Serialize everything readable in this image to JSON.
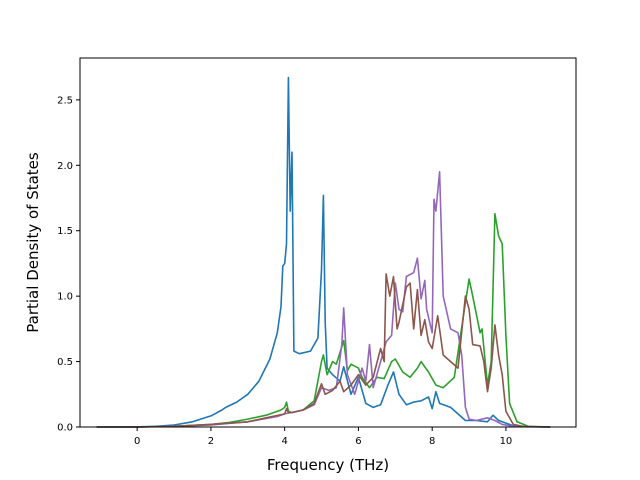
{
  "chart_data": {
    "type": "line",
    "title": "",
    "xlabel": "Frequency (THz)",
    "ylabel": "Partial Density of States",
    "xlim": [
      -1.55,
      11.9
    ],
    "ylim": [
      0,
      2.82
    ],
    "xticks": [
      0,
      2,
      4,
      6,
      8,
      10
    ],
    "yticks": [
      0.0,
      0.5,
      1.0,
      1.5,
      2.0,
      2.5
    ],
    "grid": false,
    "legend": "none",
    "series": [
      {
        "color": "#1f77b4",
        "points": [
          [
            -1.1,
            0
          ],
          [
            0,
            0.001
          ],
          [
            0.5,
            0.005
          ],
          [
            1.0,
            0.015
          ],
          [
            1.5,
            0.04
          ],
          [
            2.0,
            0.085
          ],
          [
            2.3,
            0.13
          ],
          [
            2.4,
            0.15
          ],
          [
            2.7,
            0.19
          ],
          [
            3.0,
            0.25
          ],
          [
            3.3,
            0.35
          ],
          [
            3.6,
            0.52
          ],
          [
            3.8,
            0.72
          ],
          [
            3.9,
            0.92
          ],
          [
            3.95,
            1.23
          ],
          [
            4.0,
            1.25
          ],
          [
            4.05,
            1.4
          ],
          [
            4.1,
            2.67
          ],
          [
            4.15,
            1.65
          ],
          [
            4.2,
            2.1
          ],
          [
            4.25,
            0.58
          ],
          [
            4.4,
            0.56
          ],
          [
            4.7,
            0.58
          ],
          [
            4.9,
            0.68
          ],
          [
            5.0,
            1.2
          ],
          [
            5.05,
            1.77
          ],
          [
            5.1,
            0.8
          ],
          [
            5.15,
            0.45
          ],
          [
            5.3,
            0.4
          ],
          [
            5.5,
            0.35
          ],
          [
            5.6,
            0.46
          ],
          [
            5.8,
            0.25
          ],
          [
            6.0,
            0.38
          ],
          [
            6.2,
            0.18
          ],
          [
            6.4,
            0.15
          ],
          [
            6.6,
            0.17
          ],
          [
            6.8,
            0.32
          ],
          [
            6.95,
            0.42
          ],
          [
            7.1,
            0.25
          ],
          [
            7.3,
            0.17
          ],
          [
            7.5,
            0.19
          ],
          [
            7.7,
            0.2
          ],
          [
            7.9,
            0.23
          ],
          [
            8.0,
            0.14
          ],
          [
            8.1,
            0.27
          ],
          [
            8.2,
            0.18
          ],
          [
            8.5,
            0.15
          ],
          [
            8.7,
            0.1
          ],
          [
            8.9,
            0.05
          ],
          [
            9.2,
            0.05
          ],
          [
            9.5,
            0.04
          ],
          [
            9.65,
            0.09
          ],
          [
            9.8,
            0.05
          ],
          [
            10.0,
            0.03
          ],
          [
            10.2,
            0.01
          ],
          [
            10.5,
            0.002
          ],
          [
            11.2,
            0
          ]
        ]
      },
      {
        "color": "#2ca02c",
        "points": [
          [
            -1.1,
            0
          ],
          [
            0,
            0
          ],
          [
            1.0,
            0.005
          ],
          [
            2.0,
            0.02
          ],
          [
            2.5,
            0.035
          ],
          [
            3.0,
            0.06
          ],
          [
            3.5,
            0.09
          ],
          [
            3.9,
            0.13
          ],
          [
            4.0,
            0.15
          ],
          [
            4.05,
            0.19
          ],
          [
            4.1,
            0.12
          ],
          [
            4.2,
            0.11
          ],
          [
            4.5,
            0.13
          ],
          [
            4.8,
            0.2
          ],
          [
            5.0,
            0.5
          ],
          [
            5.05,
            0.55
          ],
          [
            5.15,
            0.4
          ],
          [
            5.3,
            0.5
          ],
          [
            5.4,
            0.48
          ],
          [
            5.6,
            0.66
          ],
          [
            5.7,
            0.43
          ],
          [
            5.8,
            0.48
          ],
          [
            6.0,
            0.45
          ],
          [
            6.1,
            0.38
          ],
          [
            6.3,
            0.3
          ],
          [
            6.5,
            0.38
          ],
          [
            6.7,
            0.37
          ],
          [
            6.9,
            0.5
          ],
          [
            7.0,
            0.52
          ],
          [
            7.2,
            0.42
          ],
          [
            7.4,
            0.38
          ],
          [
            7.6,
            0.45
          ],
          [
            7.7,
            0.5
          ],
          [
            7.9,
            0.42
          ],
          [
            8.1,
            0.32
          ],
          [
            8.3,
            0.3
          ],
          [
            8.6,
            0.38
          ],
          [
            8.9,
            0.95
          ],
          [
            9.0,
            1.13
          ],
          [
            9.1,
            1.0
          ],
          [
            9.3,
            0.72
          ],
          [
            9.35,
            0.75
          ],
          [
            9.5,
            0.32
          ],
          [
            9.6,
            0.5
          ],
          [
            9.7,
            1.63
          ],
          [
            9.8,
            1.46
          ],
          [
            9.9,
            1.4
          ],
          [
            10.0,
            0.7
          ],
          [
            10.1,
            0.18
          ],
          [
            10.3,
            0.04
          ],
          [
            10.6,
            0.005
          ],
          [
            11.2,
            0
          ]
        ]
      },
      {
        "color": "#9467bd",
        "points": [
          [
            -1.1,
            0
          ],
          [
            0,
            0
          ],
          [
            1.0,
            0.005
          ],
          [
            2.0,
            0.015
          ],
          [
            3.0,
            0.04
          ],
          [
            3.8,
            0.08
          ],
          [
            4.0,
            0.1
          ],
          [
            4.5,
            0.13
          ],
          [
            4.8,
            0.17
          ],
          [
            5.0,
            0.3
          ],
          [
            5.2,
            0.28
          ],
          [
            5.4,
            0.3
          ],
          [
            5.55,
            0.63
          ],
          [
            5.6,
            0.91
          ],
          [
            5.7,
            0.4
          ],
          [
            5.9,
            0.25
          ],
          [
            6.1,
            0.45
          ],
          [
            6.2,
            0.35
          ],
          [
            6.3,
            0.63
          ],
          [
            6.4,
            0.3
          ],
          [
            6.5,
            0.4
          ],
          [
            6.6,
            0.5
          ],
          [
            6.75,
            0.65
          ],
          [
            6.9,
            0.7
          ],
          [
            7.0,
            1.1
          ],
          [
            7.1,
            0.9
          ],
          [
            7.2,
            0.88
          ],
          [
            7.3,
            1.15
          ],
          [
            7.5,
            1.18
          ],
          [
            7.6,
            1.29
          ],
          [
            7.7,
            0.98
          ],
          [
            7.8,
            1.12
          ],
          [
            7.85,
            0.9
          ],
          [
            8.0,
            0.72
          ],
          [
            8.05,
            1.74
          ],
          [
            8.1,
            1.65
          ],
          [
            8.2,
            1.95
          ],
          [
            8.3,
            1.0
          ],
          [
            8.5,
            0.75
          ],
          [
            8.7,
            0.72
          ],
          [
            8.8,
            0.55
          ],
          [
            8.9,
            0.15
          ],
          [
            9.0,
            0.06
          ],
          [
            9.2,
            0.05
          ],
          [
            9.5,
            0.07
          ],
          [
            9.7,
            0.05
          ],
          [
            9.9,
            0.02
          ],
          [
            10.2,
            0.005
          ],
          [
            11.2,
            0
          ]
        ]
      },
      {
        "color": "#8c564b",
        "points": [
          [
            -1.1,
            0
          ],
          [
            0,
            0
          ],
          [
            1.0,
            0.005
          ],
          [
            2.0,
            0.02
          ],
          [
            3.0,
            0.04
          ],
          [
            3.5,
            0.07
          ],
          [
            4.0,
            0.1
          ],
          [
            4.05,
            0.14
          ],
          [
            4.1,
            0.11
          ],
          [
            4.2,
            0.11
          ],
          [
            4.5,
            0.13
          ],
          [
            4.8,
            0.18
          ],
          [
            5.0,
            0.33
          ],
          [
            5.1,
            0.25
          ],
          [
            5.3,
            0.28
          ],
          [
            5.5,
            0.35
          ],
          [
            5.6,
            0.27
          ],
          [
            5.8,
            0.32
          ],
          [
            6.0,
            0.4
          ],
          [
            6.2,
            0.32
          ],
          [
            6.4,
            0.38
          ],
          [
            6.6,
            0.6
          ],
          [
            6.7,
            0.5
          ],
          [
            6.75,
            1.17
          ],
          [
            6.85,
            1.0
          ],
          [
            6.95,
            1.15
          ],
          [
            7.05,
            0.75
          ],
          [
            7.1,
            0.8
          ],
          [
            7.3,
            1.07
          ],
          [
            7.4,
            1.1
          ],
          [
            7.5,
            0.75
          ],
          [
            7.6,
            1.05
          ],
          [
            7.7,
            0.7
          ],
          [
            7.8,
            0.82
          ],
          [
            7.9,
            0.65
          ],
          [
            8.0,
            0.6
          ],
          [
            8.15,
            0.85
          ],
          [
            8.3,
            0.55
          ],
          [
            8.5,
            0.5
          ],
          [
            8.7,
            0.45
          ],
          [
            8.9,
            1.0
          ],
          [
            9.0,
            0.9
          ],
          [
            9.1,
            0.63
          ],
          [
            9.3,
            0.62
          ],
          [
            9.4,
            0.5
          ],
          [
            9.5,
            0.27
          ],
          [
            9.6,
            0.45
          ],
          [
            9.7,
            0.78
          ],
          [
            9.8,
            0.55
          ],
          [
            9.9,
            0.4
          ],
          [
            10.0,
            0.12
          ],
          [
            10.2,
            0.02
          ],
          [
            10.5,
            0.003
          ],
          [
            11.2,
            0
          ]
        ]
      }
    ]
  }
}
